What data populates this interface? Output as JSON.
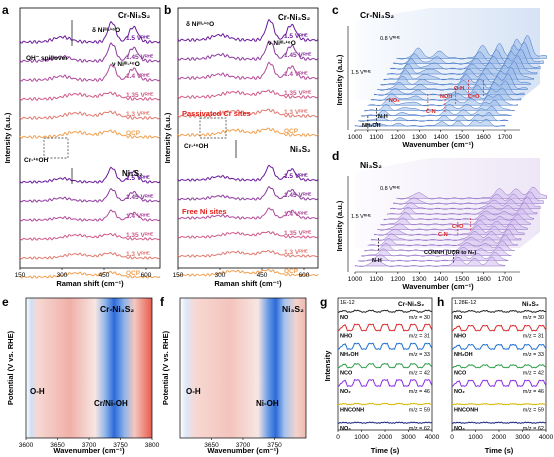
{
  "chart_data": [
    {
      "panel": "a",
      "type": "line",
      "xlabel": "Raman shift (cm⁻¹)",
      "ylabel": "Intensity (a.u.)",
      "xlim": [
        150,
        650
      ],
      "xticks": [
        150,
        300,
        450,
        600
      ],
      "annotations": [
        "Cr-Ni₃S₂",
        "δ Niᴵᴵᴵ-¹⁶O",
        "ν Niᴵᴵᴵ-¹⁶O",
        "OH⁻ spillover",
        "Cr-¹⁶OH",
        "Ni₃S₂"
      ],
      "groups": [
        {
          "name": "Cr-Ni₃S₂",
          "series": [
            {
              "name": "1.5 Vᴿᴴᴱ",
              "color": "#6a1b9a"
            },
            {
              "name": "1.45 Vᴿᴴᴱ",
              "color": "#8e3a9e"
            },
            {
              "name": "1.4 Vᴿᴴᴱ",
              "color": "#b04a9a"
            },
            {
              "name": "1.35 Vᴿᴴᴱ",
              "color": "#d05a88"
            },
            {
              "name": "1.3 Vᴿᴴᴱ",
              "color": "#e07a70"
            },
            {
              "name": "OCP",
              "color": "#f0a050"
            }
          ]
        },
        {
          "name": "Ni₃S₂",
          "series": [
            {
              "name": "1.5 Vᴿᴴᴱ",
              "color": "#6a1b9a"
            },
            {
              "name": "1.45 Vᴿᴴᴱ",
              "color": "#8e3a9e"
            },
            {
              "name": "1.4 Vᴿᴴᴱ",
              "color": "#b04a9a"
            },
            {
              "name": "1.35 Vᴿᴴᴱ",
              "color": "#d05a88"
            },
            {
              "name": "1.3 Vᴿᴴᴱ",
              "color": "#e07a70"
            },
            {
              "name": "OCP",
              "color": "#f0a050"
            }
          ]
        }
      ]
    },
    {
      "panel": "b",
      "type": "line",
      "xlabel": "Raman shift (cm⁻¹)",
      "ylabel": "Intensity (a.u.)",
      "xlim": [
        150,
        650
      ],
      "xticks": [
        150,
        300,
        450,
        600
      ],
      "annotations": [
        "Cr-Ni₃S₂",
        "δ Niᴵᴵᴵ-¹⁶O",
        "ν Niᴵᴵᴵ-¹⁶O",
        "Passivated Cr sites",
        "Cr-¹⁶OH",
        "Ni₃S₂",
        "Free Ni sites"
      ],
      "groups": [
        {
          "name": "Cr-Ni₃S₂",
          "series": [
            "1.5 Vᴿᴴᴱ",
            "1.45 Vᴿᴴᴱ",
            "1.4 Vᴿᴴᴱ",
            "1.35 Vᴿᴴᴱ",
            "1.3 Vᴿᴴᴱ",
            "OCP"
          ]
        },
        {
          "name": "Ni₃S₂",
          "series": [
            "1.5 Vᴿᴴᴱ",
            "1.45 Vᴿᴴᴱ",
            "1.4 Vᴿᴴᴱ",
            "1.35 Vᴿᴴᴱ",
            "1.3 Vᴿᴴᴱ",
            "OCP"
          ]
        }
      ]
    },
    {
      "panel": "c",
      "type": "area",
      "title": "Cr-Ni₃S₂",
      "xlabel": "Wavenumber (cm⁻¹)",
      "ylabel": "Intensity (a.u.)",
      "xlim": [
        1000,
        1700
      ],
      "xticks": [
        1000,
        1100,
        1200,
        1300,
        1400,
        1500,
        1600,
        1700
      ],
      "depth_labels": [
        "0.8 Vᴿᴴᴱ",
        "1.5 Vᴿᴴᴱ"
      ],
      "peak_labels": [
        "NH₂OH",
        "N-H",
        "⁻NO₂",
        "C-N",
        "NOH",
        "O-H",
        "C=O"
      ],
      "color": "#5b8fd6"
    },
    {
      "panel": "d",
      "type": "area",
      "title": "Ni₃S₂",
      "xlabel": "Wavenumber (cm⁻¹)",
      "ylabel": "Intensity (a.u.)",
      "xlim": [
        1000,
        1700
      ],
      "xticks": [
        1000,
        1100,
        1200,
        1300,
        1400,
        1500,
        1600,
        1700
      ],
      "depth_labels": [
        "0.8 Vᴿᴴᴱ",
        "1.5 Vᴿᴴᴱ"
      ],
      "peak_labels": [
        "N-H",
        "C-N",
        "C=O",
        "CONNH (UOR to N₂)"
      ],
      "color": "#b08ed8"
    },
    {
      "panel": "e",
      "type": "heatmap",
      "title": "Cr-Ni₃S₂",
      "xlabel": "Wavenumber (cm⁻¹)",
      "ylabel": "Potential (V vs. RHE)",
      "xlim": [
        3600,
        3800
      ],
      "xticks": [
        3600,
        3650,
        3700,
        3750,
        3800
      ],
      "labels": [
        "O-H",
        "Cr/Ni-OH"
      ]
    },
    {
      "panel": "f",
      "type": "heatmap",
      "title": "Ni₃S₂",
      "xlabel": "Wavenumber (cm⁻¹)",
      "ylabel": "Potential (V vs. RHE)",
      "xlim": [
        3600,
        3800
      ],
      "xticks": [
        3650,
        3700,
        3750
      ],
      "labels": [
        "O-H",
        "Ni-OH"
      ]
    },
    {
      "panel": "g",
      "type": "line",
      "title": "Cr-Ni₃S₂",
      "xlabel": "Time (s)",
      "ylabel": "Intensity",
      "xlim": [
        0,
        4000
      ],
      "xticks": [
        0,
        1000,
        2000,
        3000,
        4000
      ],
      "scale_label": "1E-12",
      "series": [
        {
          "name": "NO",
          "mz": "m/z = 30",
          "color": "#222222"
        },
        {
          "name": "NHO",
          "mz": "m/z = 31",
          "color": "#d92b2b"
        },
        {
          "name": "NH₂OH",
          "mz": "m/z = 33",
          "color": "#1f6fd1"
        },
        {
          "name": "NCO",
          "mz": "m/z = 42",
          "color": "#2e9e4a"
        },
        {
          "name": "NO₂",
          "mz": "m/z = 46",
          "color": "#8a2be2"
        },
        {
          "name": "HNCONH",
          "mz": "m/z = 59",
          "color": "#d4b800"
        },
        {
          "name": "NO₃",
          "mz": "m/z = 62",
          "color": "#1a237e"
        }
      ]
    },
    {
      "panel": "h",
      "type": "line",
      "title": "Ni₃S₂",
      "xlabel": "Time (s)",
      "ylabel": "Intensity",
      "xlim": [
        0,
        4000
      ],
      "xticks": [
        0,
        1000,
        2000,
        3000,
        4000
      ],
      "scale_label": "1.28E-12",
      "series": [
        {
          "name": "NO",
          "mz": "m/z = 30",
          "color": "#222222"
        },
        {
          "name": "NHO",
          "mz": "m/z = 31",
          "color": "#d92b2b"
        },
        {
          "name": "NH₂OH",
          "mz": "m/z = 33",
          "color": "#1f6fd1"
        },
        {
          "name": "NCO",
          "mz": "m/z = 42",
          "color": "#2e9e4a"
        },
        {
          "name": "NO₂",
          "mz": "m/z = 46",
          "color": "#8a2be2"
        },
        {
          "name": "HNCONH",
          "mz": "m/z = 59",
          "color": "#d4b800"
        },
        {
          "name": "NO₃",
          "mz": "m/z = 62",
          "color": "#1a237e"
        }
      ]
    }
  ]
}
